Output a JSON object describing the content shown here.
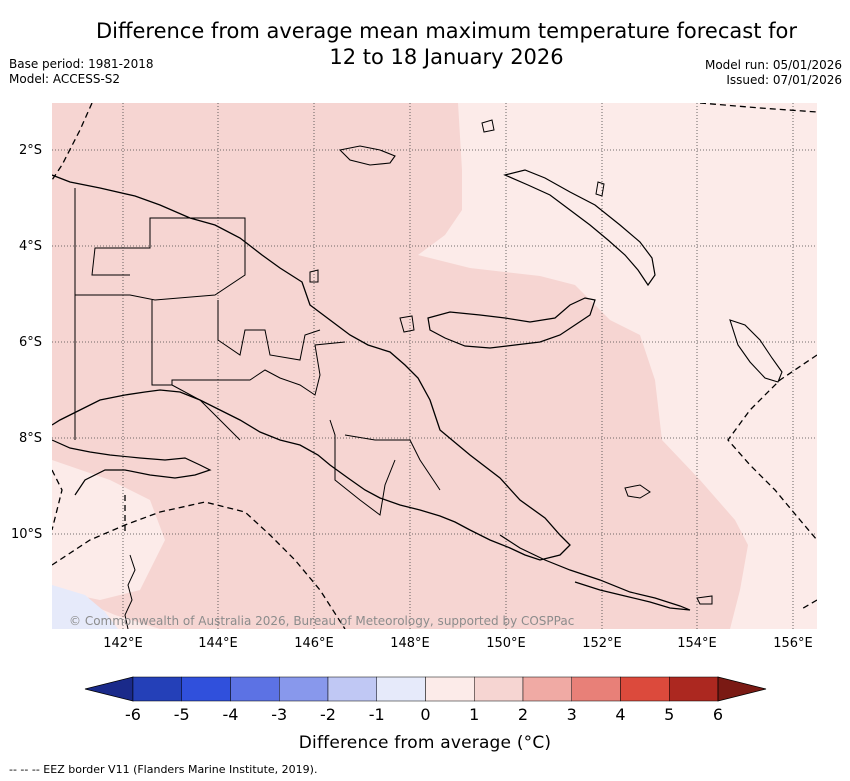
{
  "title": {
    "line1": "Difference from average mean maximum temperature forecast for",
    "line2": "12 to 18 January 2026"
  },
  "meta": {
    "base_period": "Base period: 1981-2018",
    "model": "Model: ACCESS-S2",
    "model_run": "Model run: 05/01/2026",
    "issued": "Issued: 07/01/2026"
  },
  "latitude_labels": [
    "2°S",
    "4°S",
    "6°S",
    "8°S",
    "10°S"
  ],
  "longitude_labels": [
    "142°E",
    "144°E",
    "146°E",
    "148°E",
    "150°E",
    "152°E",
    "154°E",
    "156°E"
  ],
  "colorbar": {
    "tick_labels": [
      "-6",
      "-5",
      "-4",
      "-3",
      "-2",
      "-1",
      "0",
      "1",
      "2",
      "3",
      "4",
      "5",
      "6"
    ],
    "colors": [
      "#1a2a8a",
      "#2440b8",
      "#3050dc",
      "#5c72e4",
      "#8898ec",
      "#c0c8f4",
      "#e6eafa",
      "#fcebe9",
      "#f6d5d2",
      "#f0aaa4",
      "#e88078",
      "#dc4a3c",
      "#ac2820",
      "#7a1a14"
    ],
    "title": "Difference from average (°C)"
  },
  "map": {
    "background_category_color": "#f6d5d2",
    "light_category_color": "#fcebe9",
    "cool_category_color": "#e6eafa",
    "copyright": "© Commonwealth of Australia 2026, Bureau of Meteorology, supported by COSPPac"
  },
  "footnote": "--  --  -- EEZ border V11 (Flanders Marine Institute, 2019)."
}
